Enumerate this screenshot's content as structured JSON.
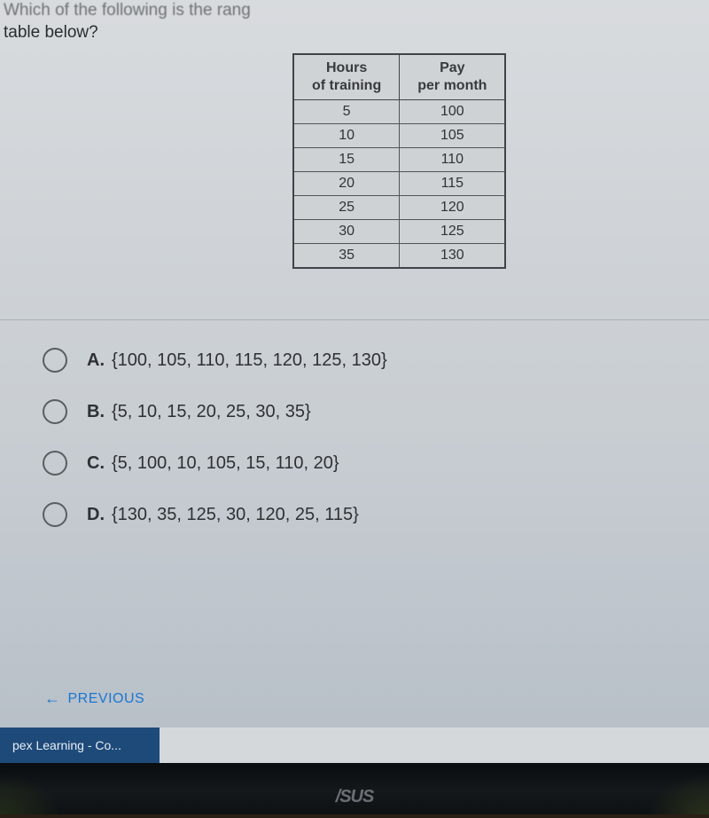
{
  "question": {
    "line1": "Which of the following is the rang",
    "line2": "table below?"
  },
  "table": {
    "columns": [
      "Hours\nof training",
      "Pay\nper month"
    ],
    "header_col1_line1": "Hours",
    "header_col1_line2": "of training",
    "header_col2_line1": "Pay",
    "header_col2_line2": "per month",
    "rows": [
      [
        "5",
        "100"
      ],
      [
        "10",
        "105"
      ],
      [
        "15",
        "110"
      ],
      [
        "20",
        "115"
      ],
      [
        "25",
        "120"
      ],
      [
        "30",
        "125"
      ],
      [
        "35",
        "130"
      ]
    ],
    "border_color": "#404448",
    "cell_bg": "#cfd2d5",
    "text_color": "#303335",
    "font_size": 16
  },
  "options": [
    {
      "letter": "A.",
      "text": "{100, 105, 110, 115, 120, 125, 130}"
    },
    {
      "letter": "B.",
      "text": "{5, 10, 15, 20, 25, 30, 35}"
    },
    {
      "letter": "C.",
      "text": "{5, 100, 10, 105, 15, 110, 20}"
    },
    {
      "letter": "D.",
      "text": "{130, 35, 125, 30, 120, 25, 115}"
    }
  ],
  "previous_label": "PREVIOUS",
  "taskbar_label": "pex Learning - Co...",
  "monitor_brand": "/SUS",
  "colors": {
    "page_bg": "#d5d8db",
    "link_blue": "#1976d2",
    "taskbar_bg": "#1e4a7a",
    "bezel_bg": "#0a0d0f",
    "radio_border": "#5a5e62",
    "text_main": "#2e3134"
  }
}
